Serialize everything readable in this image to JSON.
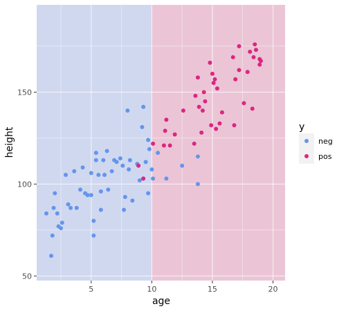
{
  "chart_data": {
    "type": "scatter",
    "xlabel": "age",
    "ylabel": "height",
    "xlim": [
      0.5,
      21
    ],
    "ylim": [
      47.5,
      197.5
    ],
    "x_ticks": [
      5,
      10,
      15,
      20
    ],
    "y_ticks": [
      50,
      100,
      150
    ],
    "grid": true,
    "legend": {
      "title": "y",
      "position": "right",
      "entries": [
        "neg",
        "pos"
      ]
    },
    "regions": [
      {
        "label": "neg",
        "x_from": 0.5,
        "x_to": 10,
        "color": "#d0d8f0"
      },
      {
        "label": "pos",
        "x_from": 10,
        "x_to": 21,
        "color": "#ebc5d6"
      }
    ],
    "series": [
      {
        "name": "neg",
        "color": "#6495ed",
        "points": [
          [
            1.3,
            84
          ],
          [
            1.7,
            61
          ],
          [
            1.8,
            72
          ],
          [
            1.9,
            87
          ],
          [
            2.0,
            95
          ],
          [
            2.2,
            84
          ],
          [
            2.3,
            77
          ],
          [
            2.5,
            76
          ],
          [
            2.6,
            79
          ],
          [
            2.9,
            105
          ],
          [
            3.1,
            89
          ],
          [
            3.3,
            87
          ],
          [
            3.6,
            107
          ],
          [
            3.8,
            87
          ],
          [
            4.1,
            97
          ],
          [
            4.3,
            109
          ],
          [
            4.5,
            95
          ],
          [
            4.7,
            94
          ],
          [
            5.0,
            106
          ],
          [
            5.0,
            94
          ],
          [
            5.2,
            80
          ],
          [
            5.2,
            72
          ],
          [
            5.4,
            117
          ],
          [
            5.4,
            113
          ],
          [
            5.6,
            105
          ],
          [
            5.8,
            96
          ],
          [
            5.8,
            86
          ],
          [
            6.0,
            113
          ],
          [
            6.1,
            105
          ],
          [
            6.3,
            118
          ],
          [
            6.4,
            97
          ],
          [
            6.7,
            107
          ],
          [
            6.9,
            113
          ],
          [
            7.1,
            112
          ],
          [
            7.4,
            114
          ],
          [
            7.6,
            110
          ],
          [
            7.7,
            86
          ],
          [
            7.8,
            93
          ],
          [
            8.0,
            140
          ],
          [
            8.1,
            108
          ],
          [
            8.2,
            113
          ],
          [
            8.4,
            91
          ],
          [
            8.8,
            111
          ],
          [
            9.0,
            102
          ],
          [
            9.2,
            131
          ],
          [
            9.3,
            142
          ],
          [
            9.3,
            103
          ],
          [
            9.5,
            112
          ],
          [
            9.7,
            124
          ],
          [
            9.7,
            95
          ],
          [
            9.8,
            119
          ],
          [
            10.0,
            108
          ],
          [
            10.1,
            103
          ],
          [
            10.5,
            117
          ],
          [
            11.2,
            103
          ],
          [
            12.5,
            110
          ],
          [
            13.8,
            115
          ],
          [
            13.8,
            100
          ]
        ]
      },
      {
        "name": "pos",
        "color": "#dc2680",
        "points": [
          [
            8.9,
            110
          ],
          [
            9.3,
            103
          ],
          [
            10.1,
            122
          ],
          [
            11.0,
            121
          ],
          [
            11.1,
            129
          ],
          [
            11.2,
            135
          ],
          [
            11.5,
            121
          ],
          [
            11.9,
            127
          ],
          [
            12.6,
            140
          ],
          [
            13.5,
            122
          ],
          [
            13.6,
            148
          ],
          [
            13.8,
            158
          ],
          [
            13.9,
            142
          ],
          [
            14.1,
            128
          ],
          [
            14.2,
            140
          ],
          [
            14.3,
            150
          ],
          [
            14.4,
            145
          ],
          [
            14.8,
            166
          ],
          [
            14.9,
            132
          ],
          [
            15.0,
            160
          ],
          [
            15.1,
            155
          ],
          [
            15.2,
            157
          ],
          [
            15.3,
            130
          ],
          [
            15.4,
            152
          ],
          [
            15.6,
            133
          ],
          [
            15.8,
            139
          ],
          [
            16.7,
            169
          ],
          [
            16.8,
            132
          ],
          [
            16.9,
            157
          ],
          [
            17.2,
            162
          ],
          [
            17.2,
            175
          ],
          [
            17.6,
            144
          ],
          [
            17.9,
            161
          ],
          [
            18.1,
            172
          ],
          [
            18.3,
            141
          ],
          [
            18.4,
            169
          ],
          [
            18.5,
            176
          ],
          [
            18.6,
            173
          ],
          [
            18.9,
            165
          ],
          [
            18.9,
            168
          ],
          [
            19.0,
            167
          ]
        ]
      }
    ]
  }
}
